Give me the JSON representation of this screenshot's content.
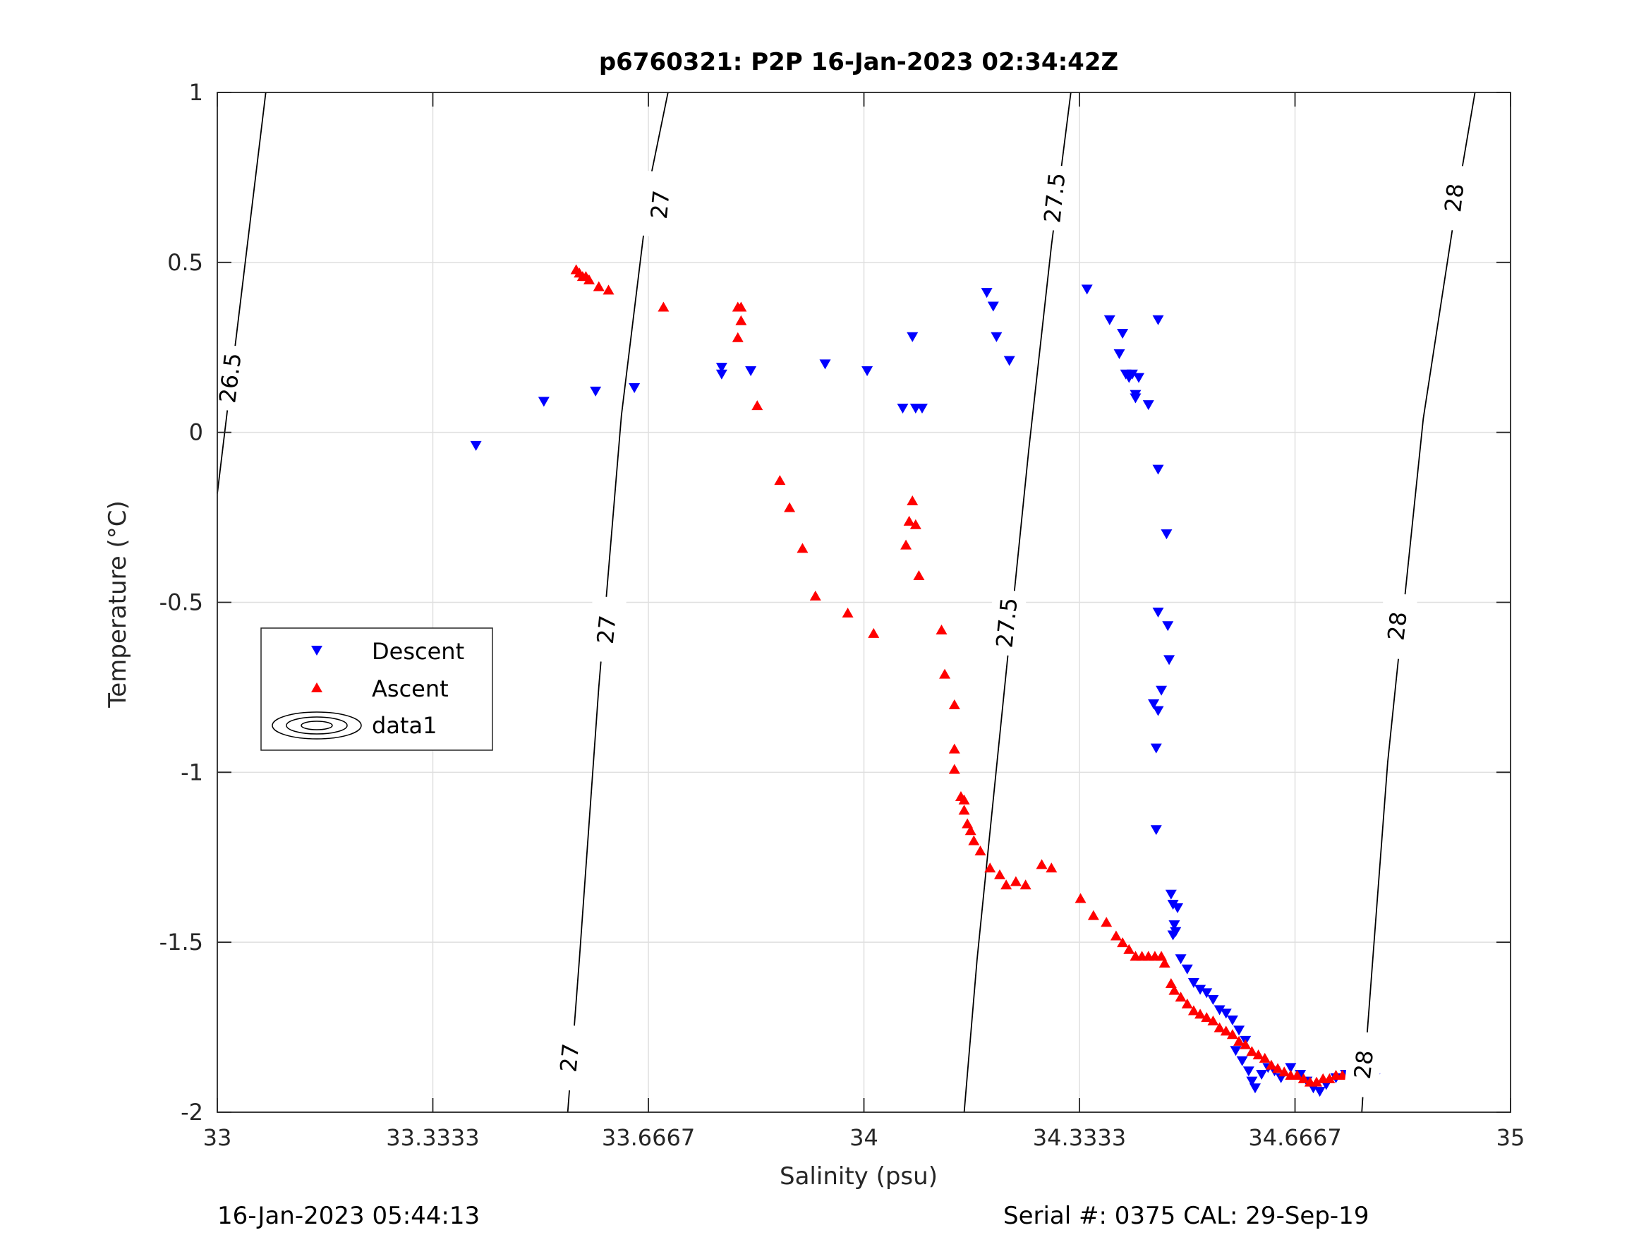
{
  "chart_data": {
    "type": "scatter",
    "title": "p6760321: P2P 16-Jan-2023 02:34:42Z",
    "xlabel": "Salinity (psu)",
    "ylabel": "Temperature (°C)",
    "xlim": [
      33,
      35
    ],
    "ylim": [
      -2,
      1
    ],
    "xticks": [
      33,
      33.3333,
      33.6667,
      34,
      34.3333,
      34.6667,
      35
    ],
    "xtick_labels": [
      "33",
      "33.3333",
      "33.6667",
      "34",
      "34.3333",
      "34.6667",
      "35"
    ],
    "yticks": [
      1,
      0.5,
      0,
      -0.5,
      -1,
      -1.5,
      -2
    ],
    "ytick_labels": [
      "1",
      "0.5",
      "0",
      "-0.5",
      "-1",
      "-1.5",
      "-2"
    ],
    "grid": true,
    "legend_position": "center-left",
    "legend": [
      "Descent",
      "Ascent",
      "data1"
    ],
    "footer_left": "16-Jan-2023 05:44:13",
    "footer_right": "Serial #: 0375  CAL: 29-Sep-19",
    "series": [
      {
        "name": "Descent",
        "marker": "triangle-down",
        "color": "#0000ff",
        "points": [
          [
            33.4,
            -0.04
          ],
          [
            33.505,
            0.09
          ],
          [
            33.585,
            0.12
          ],
          [
            33.645,
            0.13
          ],
          [
            33.78,
            0.19
          ],
          [
            33.78,
            0.17
          ],
          [
            33.825,
            0.18
          ],
          [
            33.94,
            0.2
          ],
          [
            34.005,
            0.18
          ],
          [
            34.06,
            0.07
          ],
          [
            34.075,
            0.28
          ],
          [
            34.08,
            0.07
          ],
          [
            34.09,
            0.07
          ],
          [
            34.19,
            0.41
          ],
          [
            34.2,
            0.37
          ],
          [
            34.205,
            0.28
          ],
          [
            34.225,
            0.21
          ],
          [
            34.345,
            0.42
          ],
          [
            34.38,
            0.33
          ],
          [
            34.395,
            0.23
          ],
          [
            34.4,
            0.29
          ],
          [
            34.405,
            0.17
          ],
          [
            34.41,
            0.16
          ],
          [
            34.415,
            0.17
          ],
          [
            34.42,
            0.11
          ],
          [
            34.42,
            0.1
          ],
          [
            34.425,
            0.16
          ],
          [
            34.44,
            0.08
          ],
          [
            34.455,
            0.33
          ],
          [
            34.455,
            -0.11
          ],
          [
            34.468,
            -0.3
          ],
          [
            34.455,
            -0.53
          ],
          [
            34.47,
            -0.57
          ],
          [
            34.472,
            -0.67
          ],
          [
            34.46,
            -0.76
          ],
          [
            34.448,
            -0.8
          ],
          [
            34.455,
            -0.82
          ],
          [
            34.452,
            -0.93
          ],
          [
            34.452,
            -1.17
          ],
          [
            34.475,
            -1.36
          ],
          [
            34.478,
            -1.39
          ],
          [
            34.485,
            -1.4
          ],
          [
            34.48,
            -1.45
          ],
          [
            34.482,
            -1.47
          ],
          [
            34.478,
            -1.48
          ],
          [
            34.49,
            -1.55
          ],
          [
            34.5,
            -1.58
          ],
          [
            34.51,
            -1.62
          ],
          [
            34.52,
            -1.64
          ],
          [
            34.53,
            -1.65
          ],
          [
            34.54,
            -1.67
          ],
          [
            34.55,
            -1.7
          ],
          [
            34.56,
            -1.71
          ],
          [
            34.57,
            -1.73
          ],
          [
            34.58,
            -1.76
          ],
          [
            34.59,
            -1.79
          ],
          [
            34.575,
            -1.82
          ],
          [
            34.585,
            -1.85
          ],
          [
            34.595,
            -1.88
          ],
          [
            34.6,
            -1.91
          ],
          [
            34.605,
            -1.93
          ],
          [
            34.615,
            -1.89
          ],
          [
            34.625,
            -1.87
          ],
          [
            34.635,
            -1.88
          ],
          [
            34.645,
            -1.9
          ],
          [
            34.66,
            -1.87
          ],
          [
            34.675,
            -1.89
          ],
          [
            34.685,
            -1.91
          ],
          [
            34.695,
            -1.93
          ],
          [
            34.705,
            -1.94
          ],
          [
            34.715,
            -1.92
          ],
          [
            34.73,
            -1.9
          ],
          [
            34.745,
            -1.89
          ],
          [
            34.76,
            -1.89
          ],
          [
            34.775,
            -1.89
          ],
          [
            34.79,
            -1.9
          ]
        ]
      },
      {
        "name": "Ascent",
        "marker": "triangle-up",
        "color": "#ff0000",
        "points": [
          [
            33.555,
            0.48
          ],
          [
            33.56,
            0.47
          ],
          [
            33.565,
            0.46
          ],
          [
            33.57,
            0.46
          ],
          [
            33.575,
            0.45
          ],
          [
            33.59,
            0.43
          ],
          [
            33.605,
            0.42
          ],
          [
            33.69,
            0.37
          ],
          [
            33.805,
            0.37
          ],
          [
            33.81,
            0.37
          ],
          [
            33.81,
            0.33
          ],
          [
            33.805,
            0.28
          ],
          [
            33.835,
            0.08
          ],
          [
            33.87,
            -0.14
          ],
          [
            33.885,
            -0.22
          ],
          [
            33.905,
            -0.34
          ],
          [
            33.925,
            -0.48
          ],
          [
            33.975,
            -0.53
          ],
          [
            34.015,
            -0.59
          ],
          [
            34.075,
            -0.2
          ],
          [
            34.07,
            -0.26
          ],
          [
            34.08,
            -0.27
          ],
          [
            34.065,
            -0.33
          ],
          [
            34.085,
            -0.42
          ],
          [
            34.12,
            -0.58
          ],
          [
            34.125,
            -0.71
          ],
          [
            34.14,
            -0.8
          ],
          [
            34.14,
            -0.93
          ],
          [
            34.14,
            -0.99
          ],
          [
            34.15,
            -1.07
          ],
          [
            34.155,
            -1.08
          ],
          [
            34.155,
            -1.11
          ],
          [
            34.16,
            -1.15
          ],
          [
            34.165,
            -1.17
          ],
          [
            34.17,
            -1.2
          ],
          [
            34.18,
            -1.23
          ],
          [
            34.195,
            -1.28
          ],
          [
            34.21,
            -1.3
          ],
          [
            34.22,
            -1.33
          ],
          [
            34.235,
            -1.32
          ],
          [
            34.25,
            -1.33
          ],
          [
            34.275,
            -1.27
          ],
          [
            34.29,
            -1.28
          ],
          [
            34.335,
            -1.37
          ],
          [
            34.355,
            -1.42
          ],
          [
            34.375,
            -1.44
          ],
          [
            34.39,
            -1.48
          ],
          [
            34.4,
            -1.5
          ],
          [
            34.41,
            -1.52
          ],
          [
            34.42,
            -1.54
          ],
          [
            34.43,
            -1.54
          ],
          [
            34.44,
            -1.54
          ],
          [
            34.45,
            -1.54
          ],
          [
            34.46,
            -1.54
          ],
          [
            34.465,
            -1.56
          ],
          [
            34.475,
            -1.62
          ],
          [
            34.48,
            -1.64
          ],
          [
            34.49,
            -1.66
          ],
          [
            34.5,
            -1.68
          ],
          [
            34.51,
            -1.7
          ],
          [
            34.52,
            -1.71
          ],
          [
            34.53,
            -1.72
          ],
          [
            34.54,
            -1.73
          ],
          [
            34.55,
            -1.75
          ],
          [
            34.56,
            -1.76
          ],
          [
            34.57,
            -1.77
          ],
          [
            34.58,
            -1.79
          ],
          [
            34.59,
            -1.8
          ],
          [
            34.6,
            -1.82
          ],
          [
            34.61,
            -1.83
          ],
          [
            34.62,
            -1.84
          ],
          [
            34.63,
            -1.86
          ],
          [
            34.64,
            -1.87
          ],
          [
            34.65,
            -1.88
          ],
          [
            34.66,
            -1.89
          ],
          [
            34.67,
            -1.89
          ],
          [
            34.68,
            -1.9
          ],
          [
            34.69,
            -1.91
          ],
          [
            34.7,
            -1.91
          ],
          [
            34.71,
            -1.9
          ],
          [
            34.72,
            -1.9
          ],
          [
            34.73,
            -1.89
          ],
          [
            34.74,
            -1.89
          ],
          [
            34.75,
            -1.89
          ],
          [
            34.76,
            -1.89
          ],
          [
            34.77,
            -1.89
          ],
          [
            34.78,
            -1.89
          ]
        ]
      },
      {
        "name": "data1",
        "type": "contour",
        "color": "#000000",
        "levels": [
          {
            "label": "26.5",
            "points": [
              [
                33.0,
                -0.18
              ],
              [
                33.075,
                1.0
              ]
            ],
            "label_positions": [
              [
                33.02,
                0.16
              ]
            ]
          },
          {
            "label": "27",
            "points": [
              [
                33.542,
                -2.0
              ],
              [
                33.56,
                -1.55
              ],
              [
                33.59,
                -0.75
              ],
              [
                33.625,
                0.05
              ],
              [
                33.67,
                0.75
              ],
              [
                33.697,
                1.0
              ]
            ],
            "label_positions": [
              [
                33.545,
                -1.84
              ],
              [
                33.602,
                -0.58
              ],
              [
                33.685,
                0.67
              ]
            ]
          },
          {
            "label": "27.5",
            "points": [
              [
                34.155,
                -2.0
              ],
              [
                34.175,
                -1.55
              ],
              [
                34.215,
                -0.8
              ],
              [
                34.255,
                -0.05
              ],
              [
                34.29,
                0.55
              ],
              [
                34.32,
                1.0
              ]
            ],
            "label_positions": [
              [
                34.221,
                -0.56
              ],
              [
                34.295,
                0.69
              ]
            ]
          },
          {
            "label": "28",
            "points": [
              [
                34.77,
                -2.0
              ],
              [
                34.775,
                -1.85
              ],
              [
                34.81,
                -0.97
              ],
              [
                34.865,
                0.04
              ],
              [
                34.92,
                0.72
              ],
              [
                34.945,
                1.0
              ]
            ],
            "label_positions": [
              [
                34.773,
                -1.86
              ],
              [
                34.825,
                -0.57
              ],
              [
                34.913,
                0.69
              ]
            ]
          }
        ]
      }
    ]
  }
}
